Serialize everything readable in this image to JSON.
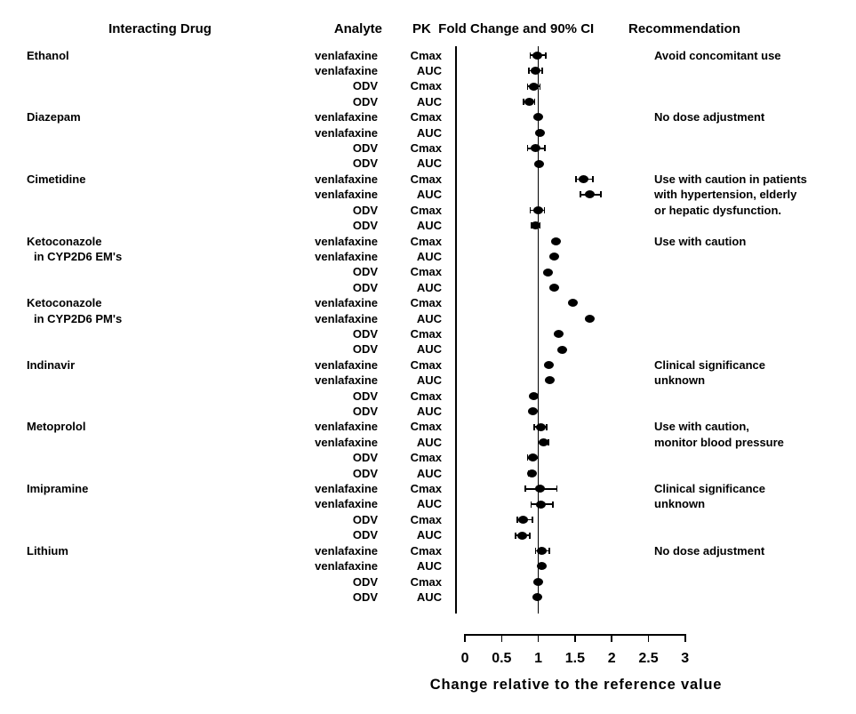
{
  "header": {
    "interacting_drug": "Interacting Drug",
    "analyte": "Analyte",
    "pk_fold_change": "PK  Fold Change and 90% CI",
    "recommendation": "Recommendation"
  },
  "axis": {
    "label": "Change relative to the reference value",
    "tick_values": [
      0,
      0.5,
      1,
      1.5,
      2,
      2.5,
      3
    ],
    "tick_labels": [
      "0",
      "0.5",
      "1",
      "1.5",
      "2",
      "2.5",
      "3"
    ],
    "min": 0,
    "max": 3,
    "reference_value": 1
  },
  "chart_data": {
    "type": "scatter",
    "subtype": "forest-plot",
    "title": "PK Fold Change and 90% CI",
    "xlabel": "Change relative to the reference value",
    "xlim": [
      0,
      3
    ],
    "reference_line_x": 1,
    "marker_color": "#000000",
    "groups": [
      {
        "name_lines": [
          "Ethanol"
        ],
        "recommendation": [
          "Avoid concomitant use"
        ],
        "rows": [
          {
            "analyte": "venlafaxine",
            "pk": "Cmax",
            "value": 1.0,
            "ci": [
              0.9,
              1.11
            ]
          },
          {
            "analyte": "venlafaxine",
            "pk": "AUC",
            "value": 0.97,
            "ci": [
              0.88,
              1.06
            ]
          },
          {
            "analyte": "ODV",
            "pk": "Cmax",
            "value": 0.95,
            "ci": [
              0.86,
              1.03
            ]
          },
          {
            "analyte": "ODV",
            "pk": "AUC",
            "value": 0.89,
            "ci": [
              0.81,
              0.96
            ]
          }
        ]
      },
      {
        "name_lines": [
          "Diazepam"
        ],
        "recommendation": [
          "No dose adjustment"
        ],
        "rows": [
          {
            "analyte": "venlafaxine",
            "pk": "Cmax",
            "value": 1.01,
            "ci": null
          },
          {
            "analyte": "venlafaxine",
            "pk": "AUC",
            "value": 1.03,
            "ci": null
          },
          {
            "analyte": "ODV",
            "pk": "Cmax",
            "value": 0.97,
            "ci": [
              0.86,
              1.1
            ]
          },
          {
            "analyte": "ODV",
            "pk": "AUC",
            "value": 1.02,
            "ci": null
          }
        ]
      },
      {
        "name_lines": [
          "Cimetidine"
        ],
        "recommendation": [
          "Use with caution in patients",
          "with hypertension, elderly",
          "or hepatic dysfunction."
        ],
        "rows": [
          {
            "analyte": "venlafaxine",
            "pk": "Cmax",
            "value": 1.63,
            "ci": [
              1.52,
              1.75
            ]
          },
          {
            "analyte": "venlafaxine",
            "pk": "AUC",
            "value": 1.71,
            "ci": [
              1.58,
              1.86
            ]
          },
          {
            "analyte": "ODV",
            "pk": "Cmax",
            "value": 1.01,
            "ci": [
              0.9,
              1.09
            ]
          },
          {
            "analyte": "ODV",
            "pk": "AUC",
            "value": 0.97,
            "ci": [
              0.92,
              1.03
            ]
          }
        ]
      },
      {
        "name_lines": [
          "Ketoconazole",
          "in CYP2D6 EM's"
        ],
        "recommendation": [
          "Use with caution"
        ],
        "rows": [
          {
            "analyte": "venlafaxine",
            "pk": "Cmax",
            "value": 1.25,
            "ci": null
          },
          {
            "analyte": "venlafaxine",
            "pk": "AUC",
            "value": 1.22,
            "ci": null
          },
          {
            "analyte": "ODV",
            "pk": "Cmax",
            "value": 1.14,
            "ci": null
          },
          {
            "analyte": "ODV",
            "pk": "AUC",
            "value": 1.23,
            "ci": null
          }
        ]
      },
      {
        "name_lines": [
          "Ketoconazole",
          "in CYP2D6 PM's"
        ],
        "recommendation": [],
        "rows": [
          {
            "analyte": "venlafaxine",
            "pk": "Cmax",
            "value": 1.48,
            "ci": null
          },
          {
            "analyte": "venlafaxine",
            "pk": "AUC",
            "value": 1.71,
            "ci": null
          },
          {
            "analyte": "ODV",
            "pk": "Cmax",
            "value": 1.29,
            "ci": null
          },
          {
            "analyte": "ODV",
            "pk": "AUC",
            "value": 1.33,
            "ci": null
          }
        ]
      },
      {
        "name_lines": [
          "Indinavir"
        ],
        "recommendation": [
          "Clinical significance",
          "unknown"
        ],
        "rows": [
          {
            "analyte": "venlafaxine",
            "pk": "Cmax",
            "value": 1.15,
            "ci": null
          },
          {
            "analyte": "venlafaxine",
            "pk": "AUC",
            "value": 1.16,
            "ci": null
          },
          {
            "analyte": "ODV",
            "pk": "Cmax",
            "value": 0.95,
            "ci": null
          },
          {
            "analyte": "ODV",
            "pk": "AUC",
            "value": 0.94,
            "ci": null
          }
        ]
      },
      {
        "name_lines": [
          "Metoprolol"
        ],
        "recommendation": [
          "Use with caution,",
          "monitor blood pressure"
        ],
        "rows": [
          {
            "analyte": "venlafaxine",
            "pk": "Cmax",
            "value": 1.04,
            "ci": [
              0.95,
              1.12
            ]
          },
          {
            "analyte": "venlafaxine",
            "pk": "AUC",
            "value": 1.08,
            "ci": [
              1.01,
              1.15
            ]
          },
          {
            "analyte": "ODV",
            "pk": "Cmax",
            "value": 0.93,
            "ci": [
              0.86,
              1.01
            ]
          },
          {
            "analyte": "ODV",
            "pk": "AUC",
            "value": 0.92,
            "ci": [
              0.88,
              0.96
            ]
          }
        ]
      },
      {
        "name_lines": [
          "Imipramine"
        ],
        "recommendation": [
          "Clinical significance",
          "unknown"
        ],
        "rows": [
          {
            "analyte": "venlafaxine",
            "pk": "Cmax",
            "value": 1.03,
            "ci": [
              0.83,
              1.26
            ]
          },
          {
            "analyte": "venlafaxine",
            "pk": "AUC",
            "value": 1.05,
            "ci": [
              0.91,
              1.21
            ]
          },
          {
            "analyte": "ODV",
            "pk": "Cmax",
            "value": 0.8,
            "ci": [
              0.72,
              0.93
            ]
          },
          {
            "analyte": "ODV",
            "pk": "AUC",
            "value": 0.79,
            "ci": [
              0.7,
              0.89
            ]
          }
        ]
      },
      {
        "name_lines": [
          "Lithium"
        ],
        "recommendation": [
          "No dose adjustment"
        ],
        "rows": [
          {
            "analyte": "venlafaxine",
            "pk": "Cmax",
            "value": 1.06,
            "ci": [
              0.97,
              1.16
            ]
          },
          {
            "analyte": "venlafaxine",
            "pk": "AUC",
            "value": 1.06,
            "ci": null
          },
          {
            "analyte": "ODV",
            "pk": "Cmax",
            "value": 1.01,
            "ci": null
          },
          {
            "analyte": "ODV",
            "pk": "AUC",
            "value": 1.0,
            "ci": null
          }
        ]
      }
    ]
  }
}
